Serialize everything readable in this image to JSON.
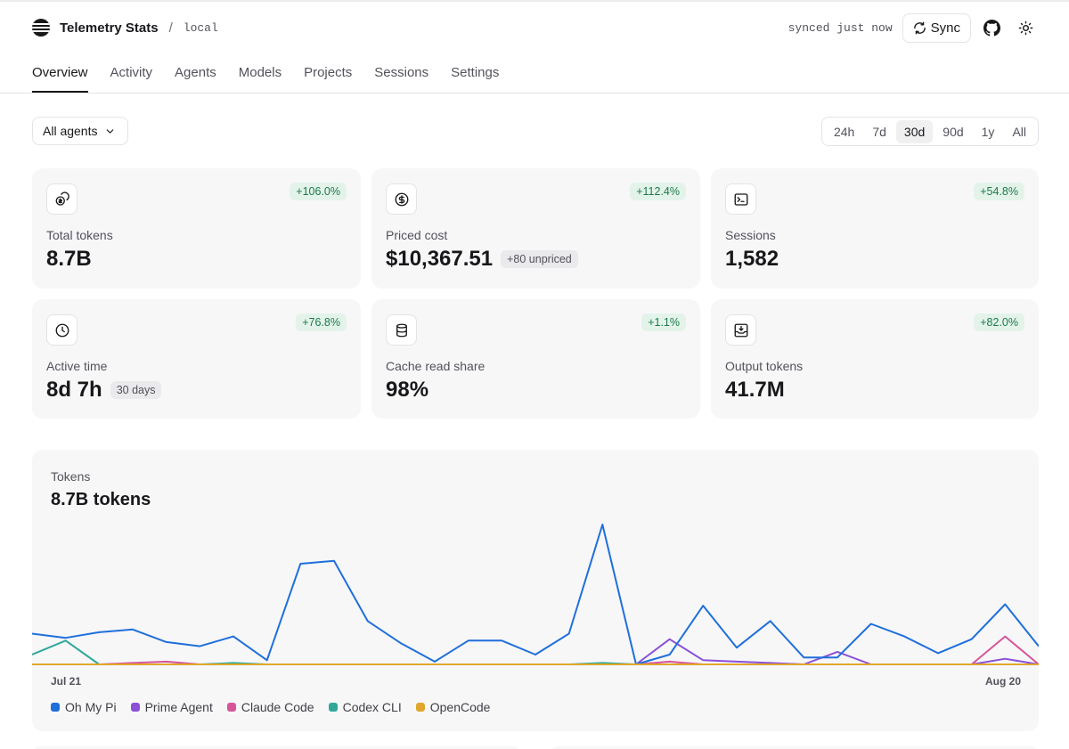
{
  "app": {
    "title": "Telemetry Stats",
    "environment": "local"
  },
  "header": {
    "sync_status": "synced just now",
    "sync_label": "Sync"
  },
  "tabs": [
    "Overview",
    "Activity",
    "Agents",
    "Models",
    "Projects",
    "Sessions",
    "Settings"
  ],
  "active_tab": "Overview",
  "filters": {
    "agent": "All agents",
    "ranges": [
      "24h",
      "7d",
      "30d",
      "90d",
      "1y",
      "All"
    ],
    "active_range": "30d"
  },
  "cards": [
    {
      "icon": "coins-icon",
      "label": "Total tokens",
      "value": "8.7B",
      "delta": "+106.0%",
      "sub": ""
    },
    {
      "icon": "dollar-icon",
      "label": "Priced cost",
      "value": "$10,367.51",
      "delta": "+112.4%",
      "sub": "+80 unpriced"
    },
    {
      "icon": "terminal-icon",
      "label": "Sessions",
      "value": "1,582",
      "delta": "+54.8%",
      "sub": ""
    },
    {
      "icon": "clock-icon",
      "label": "Active time",
      "value": "8d 7h",
      "delta": "+76.8%",
      "sub": "30 days"
    },
    {
      "icon": "database-icon",
      "label": "Cache read share",
      "value": "98%",
      "delta": "+1.1%",
      "sub": ""
    },
    {
      "icon": "inbox-download-icon",
      "label": "Output tokens",
      "value": "41.7M",
      "delta": "+82.0%",
      "sub": ""
    }
  ],
  "chart": {
    "label": "Tokens",
    "total": "8.7B tokens"
  },
  "chart_data": {
    "type": "line",
    "title": "8.7B tokens",
    "x_start_label": "Jul 21",
    "x_end_label": "Aug 20",
    "grid": false,
    "legend_position": "bottom-left",
    "series": [
      {
        "name": "Oh My Pi",
        "color": "#1f6fdb",
        "values": [
          0.22,
          0.19,
          0.23,
          0.25,
          0.16,
          0.13,
          0.2,
          0.03,
          0.72,
          0.74,
          0.31,
          0.15,
          0.02,
          0.17,
          0.17,
          0.07,
          0.22,
          1.0,
          0.0,
          0.07,
          0.42,
          0.12,
          0.31,
          0.05,
          0.05,
          0.29,
          0.2,
          0.08,
          0.18,
          0.43,
          0.13
        ]
      },
      {
        "name": "Prime Agent",
        "color": "#8b4fd8",
        "values": [
          0,
          0,
          0,
          0,
          0,
          0,
          0,
          0,
          0,
          0,
          0,
          0,
          0,
          0,
          0,
          0,
          0,
          0,
          0,
          0.18,
          0.03,
          0.02,
          0.01,
          0,
          0.09,
          0,
          0,
          0,
          0,
          0.04,
          0
        ]
      },
      {
        "name": "Claude Code",
        "color": "#d6559a",
        "values": [
          0,
          0,
          0,
          0.01,
          0.02,
          0,
          0,
          0,
          0,
          0,
          0,
          0,
          0,
          0,
          0,
          0,
          0,
          0,
          0,
          0.02,
          0,
          0,
          0,
          0,
          0,
          0,
          0,
          0,
          0,
          0.2,
          0
        ]
      },
      {
        "name": "Codex CLI",
        "color": "#2fa89a",
        "values": [
          0.07,
          0.17,
          0,
          0,
          0,
          0,
          0.01,
          0,
          0,
          0,
          0,
          0,
          0,
          0,
          0,
          0,
          0,
          0.01,
          0,
          0,
          0,
          0,
          0,
          0,
          0,
          0,
          0,
          0,
          0,
          0,
          0
        ]
      },
      {
        "name": "OpenCode",
        "color": "#e0a72e",
        "values": [
          0,
          0,
          0,
          0,
          0,
          0,
          0,
          0,
          0,
          0,
          0,
          0,
          0,
          0,
          0,
          0,
          0,
          0,
          0,
          0,
          0,
          0,
          0,
          0,
          0,
          0,
          0,
          0,
          0,
          0,
          0
        ]
      }
    ]
  },
  "colors": {
    "accent": "#18181b",
    "delta_bg": "#e3f3ea",
    "delta_text": "#1d7a4a",
    "card_bg": "#f7f7f8"
  }
}
